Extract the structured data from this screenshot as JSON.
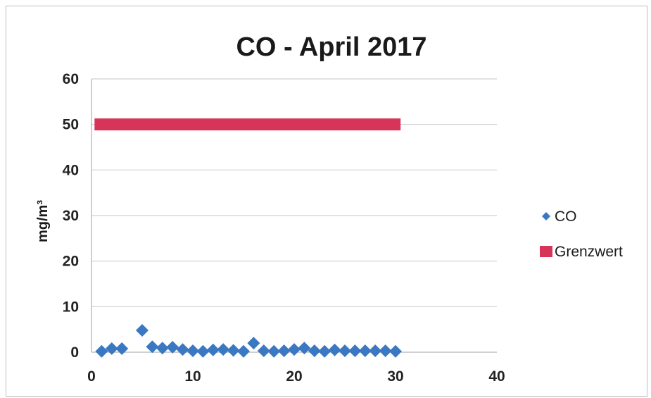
{
  "chart_data": {
    "type": "scatter",
    "title": "CO -  April 2017",
    "xlabel": "",
    "ylabel": "mg/m³",
    "xlim": [
      0,
      40
    ],
    "ylim": [
      0,
      60
    ],
    "x_ticks": [
      "0",
      "10",
      "20",
      "30",
      "40"
    ],
    "y_ticks": [
      "0",
      "10",
      "20",
      "30",
      "40",
      "50",
      "60"
    ],
    "grid": "horizontal",
    "legend_position": "right",
    "series": [
      {
        "name": "CO",
        "marker": "diamond",
        "color": "#3a78c2",
        "points": [
          [
            1,
            0.2
          ],
          [
            2,
            0.8
          ],
          [
            3,
            0.8
          ],
          [
            5,
            4.8
          ],
          [
            6,
            1.2
          ],
          [
            7,
            0.9
          ],
          [
            8,
            1.1
          ],
          [
            9,
            0.6
          ],
          [
            10,
            0.3
          ],
          [
            11,
            0.2
          ],
          [
            12,
            0.5
          ],
          [
            13,
            0.6
          ],
          [
            14,
            0.4
          ],
          [
            15,
            0.2
          ],
          [
            16,
            2.0
          ],
          [
            17,
            0.3
          ],
          [
            18,
            0.2
          ],
          [
            19,
            0.3
          ],
          [
            20,
            0.6
          ],
          [
            21,
            0.9
          ],
          [
            22,
            0.3
          ],
          [
            23,
            0.2
          ],
          [
            24,
            0.5
          ],
          [
            25,
            0.3
          ],
          [
            26,
            0.3
          ],
          [
            27,
            0.3
          ],
          [
            28,
            0.3
          ],
          [
            29,
            0.3
          ],
          [
            30,
            0.2
          ]
        ]
      },
      {
        "name": "Grenzwert",
        "marker": "line",
        "color": "#d7345a",
        "points": [
          [
            0.3,
            50
          ],
          [
            30.5,
            50
          ]
        ]
      }
    ]
  }
}
